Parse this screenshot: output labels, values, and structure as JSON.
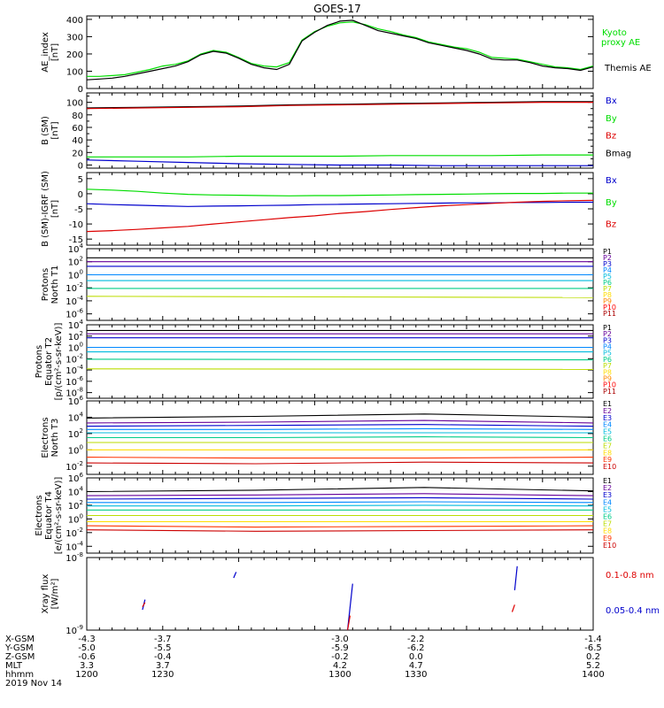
{
  "title": "GOES-17",
  "date_label": "2019 Nov 14",
  "time_axis": {
    "ticks": [
      1200,
      1230,
      1300,
      1330,
      1400
    ],
    "rows": [
      {
        "label": "X-GSM",
        "values": [
          "-4.3",
          "-3.7",
          "-3.0",
          "-2.2",
          "-1.4"
        ]
      },
      {
        "label": "Y-GSM",
        "values": [
          "-5.0",
          "-5.5",
          "-5.9",
          "-6.2",
          "-6.5"
        ]
      },
      {
        "label": "Z-GSM",
        "values": [
          "-0.6",
          "-0.4",
          "-0.2",
          "0.0",
          "0.2"
        ]
      },
      {
        "label": "MLT",
        "values": [
          "3.3",
          "3.7",
          "4.2",
          "4.7",
          "5.2"
        ]
      },
      {
        "label": "hhmm",
        "values": [
          "1200",
          "1230",
          "1300",
          "1330",
          "1400"
        ]
      }
    ]
  },
  "colors": {
    "black": "#000000",
    "green": "#00dd00",
    "blue": "#0000cc",
    "red": "#dd0000"
  },
  "chart_data": [
    {
      "type": "line",
      "ylabel": [
        "AE_index",
        "[nT]"
      ],
      "ylim": [
        0,
        420
      ],
      "yticks": [
        0,
        100,
        200,
        300,
        400
      ],
      "legend": [
        {
          "text": "Kyoto",
          "color": "#00dd00"
        },
        {
          "text": "proxy AE",
          "color": "#00dd00"
        },
        {
          "text": "Themis AE",
          "color": "#000000"
        }
      ],
      "x": [
        1200,
        1205,
        1210,
        1215,
        1220,
        1225,
        1230,
        1235,
        1240,
        1245,
        1250,
        1255,
        1260,
        1265,
        1270,
        1275,
        1280,
        1285,
        1290,
        1295,
        1300,
        1305,
        1310,
        1315,
        1320,
        1325,
        1330,
        1335,
        1340,
        1345,
        1350,
        1355,
        1360,
        1365,
        1370,
        1375,
        1380,
        1385,
        1390,
        1395,
        1400
      ],
      "series": [
        {
          "color": "#00dd00",
          "values": [
            70,
            70,
            75,
            80,
            95,
            110,
            130,
            140,
            160,
            200,
            220,
            210,
            180,
            145,
            130,
            125,
            150,
            280,
            330,
            360,
            380,
            385,
            370,
            345,
            330,
            310,
            295,
            270,
            255,
            240,
            230,
            210,
            180,
            175,
            170,
            155,
            140,
            125,
            120,
            110,
            130
          ]
        },
        {
          "color": "#000000",
          "values": [
            50,
            55,
            60,
            70,
            85,
            100,
            115,
            130,
            155,
            195,
            215,
            205,
            175,
            140,
            120,
            110,
            140,
            275,
            325,
            365,
            390,
            395,
            365,
            335,
            320,
            305,
            290,
            265,
            250,
            235,
            220,
            200,
            170,
            165,
            165,
            150,
            130,
            120,
            115,
            105,
            125
          ]
        }
      ]
    },
    {
      "type": "line",
      "ylabel": [
        "B (SM)",
        "[nT]"
      ],
      "ylim": [
        -5,
        115
      ],
      "yticks": [
        0,
        20,
        40,
        60,
        80,
        100
      ],
      "yticks_minor": [
        10,
        30,
        50,
        70,
        90,
        110
      ],
      "legend": [
        {
          "text": "Bx",
          "color": "#0000cc"
        },
        {
          "text": "By",
          "color": "#00dd00"
        },
        {
          "text": "Bz",
          "color": "#dd0000"
        },
        {
          "text": "Bmag",
          "color": "#000000"
        }
      ],
      "x": [
        1200,
        1220,
        1240,
        1260,
        1280,
        1300,
        1320,
        1340,
        1360,
        1380,
        1400
      ],
      "series": [
        {
          "name": "Bmag",
          "color": "#000000",
          "values": [
            91,
            92,
            93,
            94,
            96,
            97,
            98,
            99,
            100,
            101,
            101
          ]
        },
        {
          "name": "Bz",
          "color": "#dd0000",
          "values": [
            90,
            91,
            92,
            93,
            95,
            96,
            97,
            98,
            99,
            100,
            100
          ]
        },
        {
          "name": "By",
          "color": "#00dd00",
          "values": [
            13,
            13,
            13,
            14,
            14,
            14,
            15,
            15,
            15,
            16,
            16
          ]
        },
        {
          "name": "Bx",
          "color": "#0000cc",
          "values": [
            8,
            6,
            4,
            2,
            1,
            0,
            0,
            -1,
            -1,
            -1,
            -1
          ]
        }
      ]
    },
    {
      "type": "line",
      "ylabel": [
        "B (SM)-IGRF (SM)",
        "[nT]"
      ],
      "ylim": [
        -17,
        7
      ],
      "yticks": [
        -15,
        -10,
        -5,
        0,
        5
      ],
      "legend": [
        {
          "text": "Bx",
          "color": "#0000cc"
        },
        {
          "text": "By",
          "color": "#00dd00"
        },
        {
          "text": "Bz",
          "color": "#dd0000"
        }
      ],
      "x": [
        1200,
        1210,
        1220,
        1230,
        1240,
        1250,
        1260,
        1270,
        1280,
        1290,
        1300,
        1310,
        1320,
        1330,
        1340,
        1350,
        1360,
        1370,
        1380,
        1390,
        1400
      ],
      "series": [
        {
          "name": "By",
          "color": "#00dd00",
          "values": [
            1.5,
            1.2,
            0.8,
            0.2,
            -0.2,
            -0.4,
            -0.5,
            -0.6,
            -0.7,
            -0.6,
            -0.6,
            -0.5,
            -0.4,
            -0.3,
            -0.2,
            -0.1,
            0.0,
            0.1,
            0.1,
            0.2,
            0.2
          ]
        },
        {
          "name": "Bx",
          "color": "#0000cc",
          "values": [
            -3.3,
            -3.6,
            -3.8,
            -4.0,
            -4.2,
            -4.1,
            -4.0,
            -3.9,
            -3.8,
            -3.6,
            -3.5,
            -3.4,
            -3.3,
            -3.2,
            -3.1,
            -3.0,
            -3.0,
            -2.9,
            -2.9,
            -2.8,
            -2.8
          ]
        },
        {
          "name": "Bz",
          "color": "#dd0000",
          "values": [
            -12.5,
            -12.2,
            -11.8,
            -11.3,
            -10.8,
            -10.0,
            -9.3,
            -8.6,
            -7.9,
            -7.3,
            -6.5,
            -5.9,
            -5.2,
            -4.6,
            -4.0,
            -3.6,
            -3.2,
            -2.8,
            -2.5,
            -2.3,
            -2.2
          ]
        }
      ]
    },
    {
      "type": "line",
      "log_y": true,
      "ylabel": [
        "Protons",
        "North T1"
      ],
      "ylim_exp": [
        -7,
        4
      ],
      "ytick_exps": [
        -6,
        -4,
        -2,
        0,
        2,
        4
      ],
      "legend": [
        {
          "text": "P1",
          "color": "#000000"
        },
        {
          "text": "P2",
          "color": "#660099"
        },
        {
          "text": "P3",
          "color": "#0000cc"
        },
        {
          "text": "P4",
          "color": "#0088ff"
        },
        {
          "text": "P5",
          "color": "#00bbdd"
        },
        {
          "text": "P6",
          "color": "#00cc88"
        },
        {
          "text": "P7",
          "color": "#bbdd00"
        },
        {
          "text": "P8",
          "color": "#ffdd00"
        },
        {
          "text": "P9",
          "color": "#ff8800"
        },
        {
          "text": "P10",
          "color": "#ff0000"
        },
        {
          "text": "P11",
          "color": "#aa0000"
        }
      ],
      "series_exp": [
        {
          "color": "#000000",
          "values": [
            2.6,
            2.6
          ]
        },
        {
          "color": "#660099",
          "values": [
            2.0,
            2.0
          ]
        },
        {
          "color": "#0000cc",
          "values": [
            1.3,
            1.3
          ]
        },
        {
          "color": "#0088ff",
          "values": [
            0.0,
            0.0
          ]
        },
        {
          "color": "#00bbdd",
          "values": [
            -0.9,
            -0.9
          ]
        },
        {
          "color": "#00cc88",
          "values": [
            -2.1,
            -2.1
          ]
        },
        {
          "color": "#bbdd00",
          "values": [
            -3.3,
            -3.5
          ]
        }
      ]
    },
    {
      "type": "line",
      "log_y": true,
      "ylabel": [
        "Protons",
        "Equator T2",
        "[p/(cm²-s-sr-keV)]"
      ],
      "ylim_exp": [
        -9,
        4
      ],
      "ytick_exps": [
        -8,
        -6,
        -4,
        -2,
        0,
        2,
        4
      ],
      "legend": [
        {
          "text": "P1",
          "color": "#000000"
        },
        {
          "text": "P2",
          "color": "#660099"
        },
        {
          "text": "P3",
          "color": "#0000cc"
        },
        {
          "text": "P4",
          "color": "#0088ff"
        },
        {
          "text": "P5",
          "color": "#00bbdd"
        },
        {
          "text": "P6",
          "color": "#00cc88"
        },
        {
          "text": "P7",
          "color": "#bbdd00"
        },
        {
          "text": "P8",
          "color": "#ffdd00"
        },
        {
          "text": "P9",
          "color": "#ff8800"
        },
        {
          "text": "P10",
          "color": "#ff0000"
        },
        {
          "text": "P11",
          "color": "#aa0000"
        }
      ],
      "series_exp": [
        {
          "color": "#000000",
          "values": [
            3.0,
            3.0
          ]
        },
        {
          "color": "#660099",
          "values": [
            2.4,
            2.4
          ]
        },
        {
          "color": "#0000cc",
          "values": [
            1.7,
            1.7
          ]
        },
        {
          "color": "#0088ff",
          "values": [
            0.0,
            0.0
          ]
        },
        {
          "color": "#00bbdd",
          "values": [
            -0.8,
            -0.8
          ]
        },
        {
          "color": "#00cc88",
          "values": [
            -2.1,
            -2.2
          ]
        },
        {
          "color": "#bbdd00",
          "values": [
            -3.8,
            -3.9
          ]
        }
      ]
    },
    {
      "type": "line",
      "log_y": true,
      "ylabel": [
        "Electrons",
        "North T3"
      ],
      "ylim_exp": [
        -3,
        6
      ],
      "ytick_exps": [
        -2,
        0,
        2,
        4,
        6
      ],
      "legend": [
        {
          "text": "E1",
          "color": "#000000"
        },
        {
          "text": "E2",
          "color": "#660099"
        },
        {
          "text": "E3",
          "color": "#0000cc"
        },
        {
          "text": "E4",
          "color": "#0088ff"
        },
        {
          "text": "E5",
          "color": "#00bbdd"
        },
        {
          "text": "E6",
          "color": "#00cc88"
        },
        {
          "text": "E7",
          "color": "#bbdd00"
        },
        {
          "text": "E8",
          "color": "#ffdd00"
        },
        {
          "text": "E9",
          "color": "#ff3300"
        },
        {
          "text": "E10",
          "color": "#cc0000"
        }
      ],
      "series_exp": [
        {
          "color": "#000000",
          "values": [
            3.9,
            4.1,
            4.4,
            4.0
          ]
        },
        {
          "color": "#660099",
          "values": [
            3.3,
            3.4,
            3.6,
            3.3
          ]
        },
        {
          "color": "#0000cc",
          "values": [
            2.9,
            3.0,
            3.1,
            2.9
          ]
        },
        {
          "color": "#0088ff",
          "values": [
            2.5,
            2.5,
            2.6,
            2.5
          ]
        },
        {
          "color": "#00bbdd",
          "values": [
            2.1,
            2.1,
            2.1,
            2.1
          ]
        },
        {
          "color": "#00cc88",
          "values": [
            1.5,
            1.5,
            1.6,
            1.5
          ]
        },
        {
          "color": "#bbdd00",
          "values": [
            0.9,
            0.9,
            0.9,
            0.9
          ]
        },
        {
          "color": "#ffdd00",
          "values": [
            0.0,
            0.0,
            0.0,
            0.0
          ]
        },
        {
          "color": "#ff3300",
          "values": [
            -0.9,
            -1.0,
            -1.0,
            -0.9
          ]
        },
        {
          "color": "#cc0000",
          "values": [
            -1.6,
            -1.7,
            -1.5,
            -1.6
          ]
        }
      ]
    },
    {
      "type": "line",
      "log_y": true,
      "ylabel": [
        "Electrons",
        "Equator T4",
        "[e/(cm²-s-sr-keV)]"
      ],
      "ylim_exp": [
        -5,
        6
      ],
      "ytick_exps": [
        -4,
        -2,
        0,
        2,
        4,
        6
      ],
      "legend": [
        {
          "text": "E1",
          "color": "#000000"
        },
        {
          "text": "E2",
          "color": "#660099"
        },
        {
          "text": "E3",
          "color": "#0000cc"
        },
        {
          "text": "E4",
          "color": "#0088ff"
        },
        {
          "text": "E5",
          "color": "#00bbdd"
        },
        {
          "text": "E6",
          "color": "#00cc88"
        },
        {
          "text": "E7",
          "color": "#bbdd00"
        },
        {
          "text": "E8",
          "color": "#ffdd00"
        },
        {
          "text": "E9",
          "color": "#ff3300"
        },
        {
          "text": "E10",
          "color": "#cc0000"
        }
      ],
      "series_exp": [
        {
          "color": "#000000",
          "values": [
            4.0,
            4.2,
            4.6,
            4.1
          ]
        },
        {
          "color": "#660099",
          "values": [
            3.4,
            3.5,
            3.7,
            3.4
          ]
        },
        {
          "color": "#0000cc",
          "values": [
            2.9,
            3.0,
            3.1,
            2.9
          ]
        },
        {
          "color": "#0088ff",
          "values": [
            2.4,
            2.4,
            2.5,
            2.4
          ]
        },
        {
          "color": "#00bbdd",
          "values": [
            1.9,
            1.9,
            2.0,
            1.9
          ]
        },
        {
          "color": "#00cc88",
          "values": [
            1.3,
            1.3,
            1.3,
            1.3
          ]
        },
        {
          "color": "#bbdd00",
          "values": [
            0.5,
            0.5,
            0.5,
            0.5
          ]
        },
        {
          "color": "#ffdd00",
          "values": [
            -0.4,
            -0.4,
            -0.4,
            -0.4
          ]
        },
        {
          "color": "#ff3300",
          "values": [
            -1.0,
            -1.2,
            -1.1,
            -1.0
          ]
        },
        {
          "color": "#cc0000",
          "values": [
            -1.6,
            -1.8,
            -1.7,
            -1.6
          ]
        }
      ]
    },
    {
      "type": "line",
      "log_y": true,
      "ylabel": [
        "Xray flux",
        "[W/m²]"
      ],
      "ylim_exp": [
        -9,
        -8
      ],
      "ytick_exps": [
        -9,
        -8
      ],
      "legend": [
        {
          "text": "0.1-0.8 nm",
          "color": "#dd0000"
        },
        {
          "text": "0.05-0.4 nm",
          "color": "#0000cc"
        }
      ],
      "segments": [
        {
          "color": "#0000cc",
          "x": [
            1222,
            1223
          ],
          "y_exp": [
            -8.72,
            -8.58
          ]
        },
        {
          "color": "#dd0000",
          "x": [
            1222,
            1223
          ],
          "y_exp": [
            -8.68,
            -8.62
          ]
        },
        {
          "color": "#0000cc",
          "x": [
            1258,
            1259
          ],
          "y_exp": [
            -8.28,
            -8.2
          ]
        },
        {
          "color": "#0000cc",
          "x": [
            1303,
            1305
          ],
          "y_exp": [
            -9.0,
            -8.36
          ]
        },
        {
          "color": "#dd0000",
          "x": [
            1303,
            1304
          ],
          "y_exp": [
            -9.0,
            -8.8
          ]
        },
        {
          "color": "#0000cc",
          "x": [
            1369,
            1370
          ],
          "y_exp": [
            -8.45,
            -8.12
          ]
        },
        {
          "color": "#dd0000",
          "x": [
            1368,
            1369
          ],
          "y_exp": [
            -8.75,
            -8.65
          ]
        }
      ]
    }
  ]
}
